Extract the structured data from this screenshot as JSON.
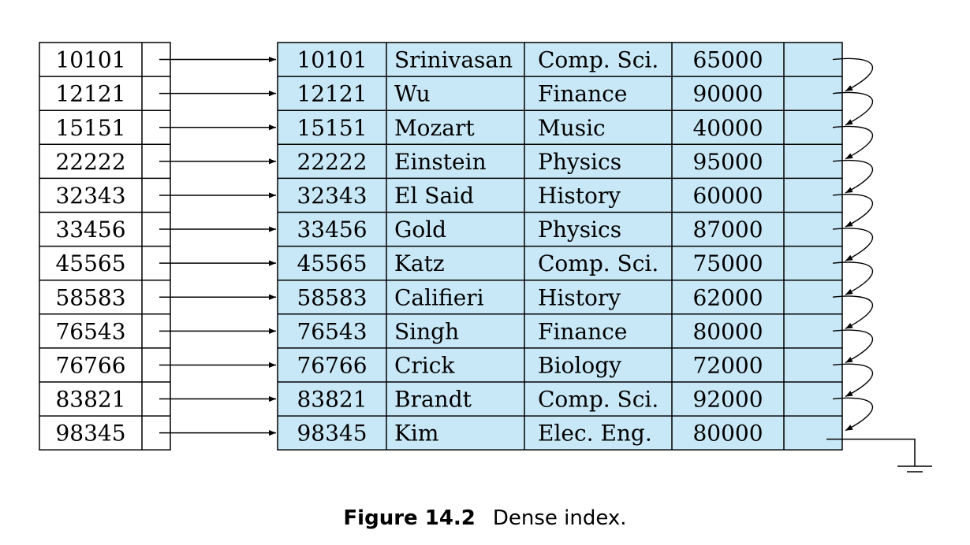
{
  "index": {
    "keys": [
      "10101",
      "12121",
      "15151",
      "22222",
      "32343",
      "33456",
      "45565",
      "58583",
      "76543",
      "76766",
      "83821",
      "98345"
    ]
  },
  "records": [
    {
      "id": "10101",
      "name": "Srinivasan",
      "dept": "Comp. Sci.",
      "salary": "65000"
    },
    {
      "id": "12121",
      "name": "Wu",
      "dept": "Finance",
      "salary": "90000"
    },
    {
      "id": "15151",
      "name": "Mozart",
      "dept": "Music",
      "salary": "40000"
    },
    {
      "id": "22222",
      "name": "Einstein",
      "dept": "Physics",
      "salary": "95000"
    },
    {
      "id": "32343",
      "name": "El Said",
      "dept": "History",
      "salary": "60000"
    },
    {
      "id": "33456",
      "name": "Gold",
      "dept": "Physics",
      "salary": "87000"
    },
    {
      "id": "45565",
      "name": "Katz",
      "dept": "Comp. Sci.",
      "salary": "75000"
    },
    {
      "id": "58583",
      "name": "Califieri",
      "dept": "History",
      "salary": "62000"
    },
    {
      "id": "76543",
      "name": "Singh",
      "dept": "Finance",
      "salary": "80000"
    },
    {
      "id": "76766",
      "name": "Crick",
      "dept": "Biology",
      "salary": "72000"
    },
    {
      "id": "83821",
      "name": "Brandt",
      "dept": "Comp. Sci.",
      "salary": "92000"
    },
    {
      "id": "98345",
      "name": "Kim",
      "dept": "Elec. Eng.",
      "salary": "80000"
    }
  ],
  "colors": {
    "record_fill": "#c8e8f7",
    "line": "#000000"
  },
  "caption": {
    "label": "Figure 14.2",
    "text": "Dense index."
  }
}
